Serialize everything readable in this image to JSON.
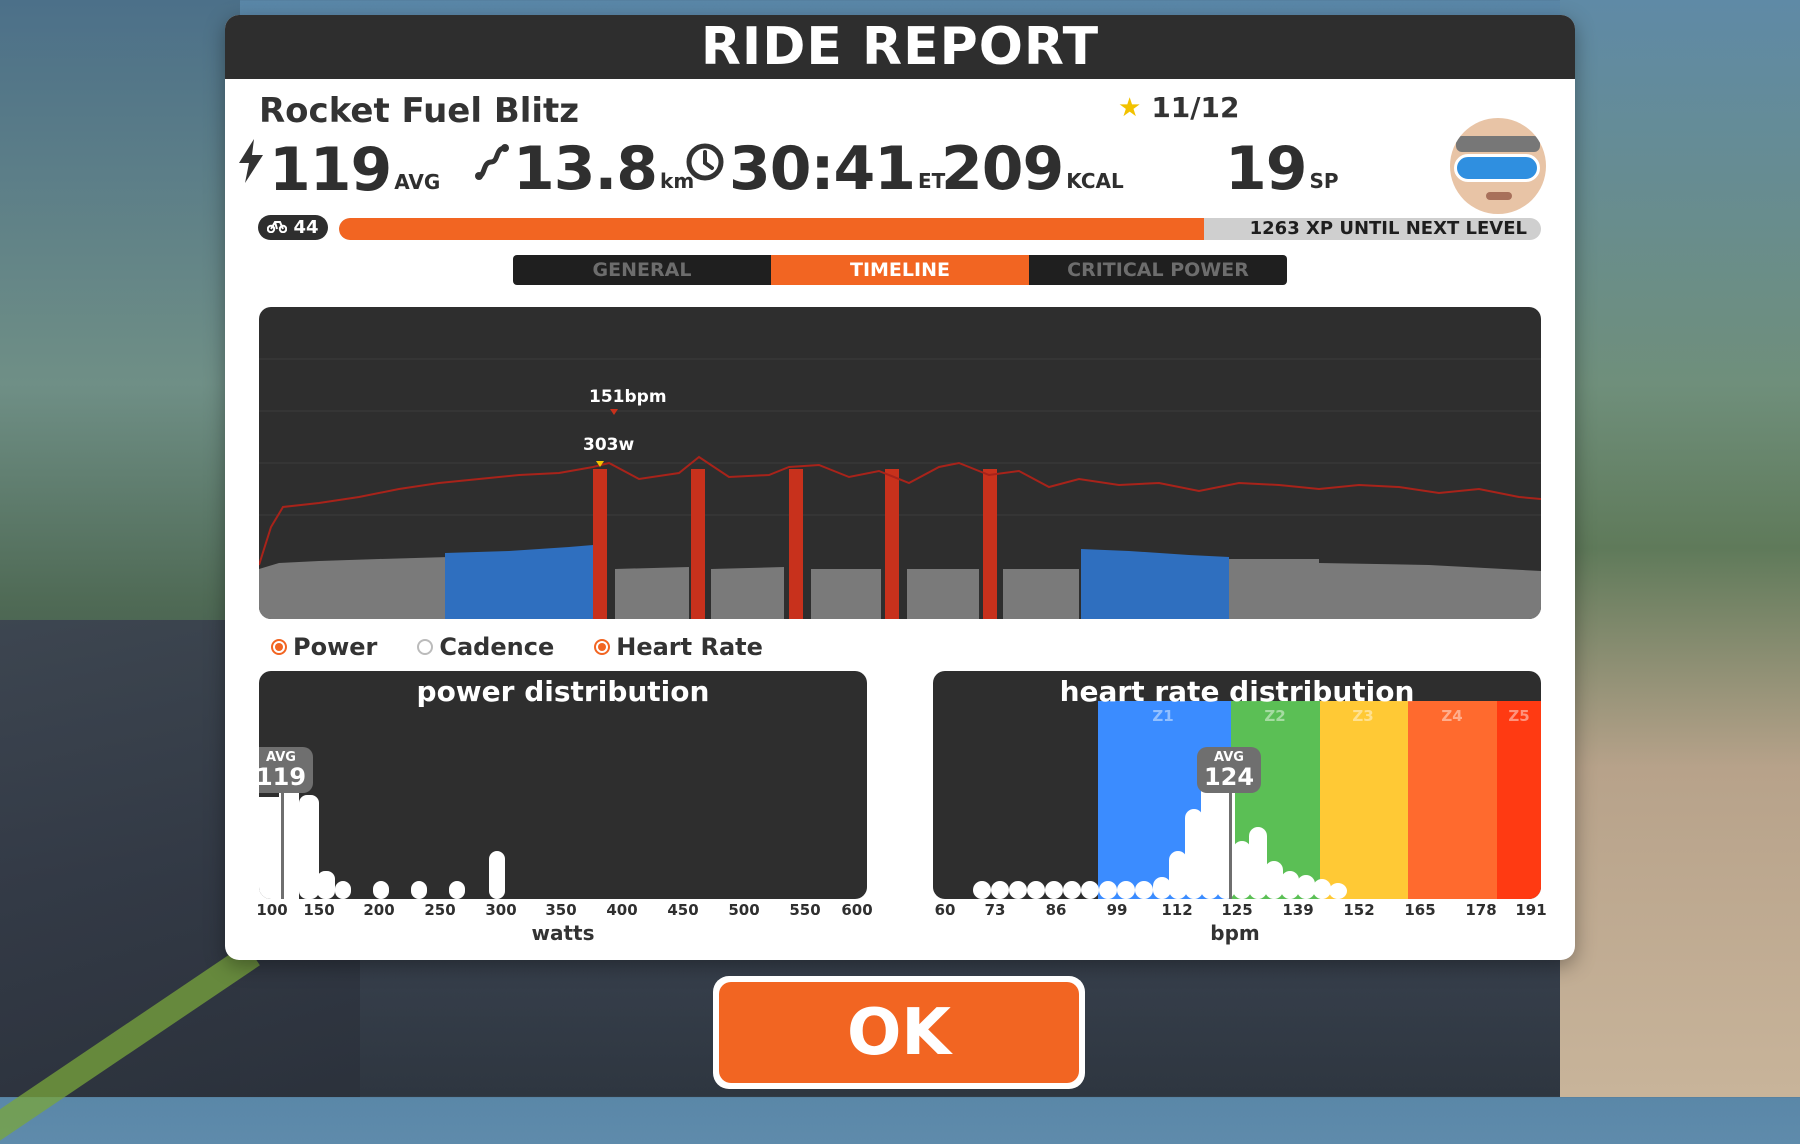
{
  "header": {
    "title": "RIDE REPORT"
  },
  "workout": {
    "name": "Rocket Fuel Blitz",
    "stars": "11/12"
  },
  "stats": {
    "power": {
      "value": "119",
      "unit": "AVG"
    },
    "distance": {
      "value": "13.8",
      "unit": "km"
    },
    "time": {
      "value": "30:41",
      "unit": "ET"
    },
    "calories": {
      "value": "209",
      "unit": "KCAL"
    },
    "sport_points": {
      "value": "19",
      "unit": "SP"
    }
  },
  "level": {
    "value": "44",
    "xp_remaining": "1263",
    "xp_label": "XP UNTIL NEXT LEVEL",
    "progress": 0.72
  },
  "tabs": [
    {
      "label": "GENERAL",
      "active": false
    },
    {
      "label": "TIMELINE",
      "active": true
    },
    {
      "label": "CRITICAL POWER",
      "active": false
    }
  ],
  "timeline": {
    "hr_peak_label": "151bpm",
    "power_peak_label": "303w"
  },
  "legend": [
    {
      "label": "Power",
      "checked": true
    },
    {
      "label": "Cadence",
      "checked": false
    },
    {
      "label": "Heart Rate",
      "checked": true
    }
  ],
  "power_distribution": {
    "title": "power distribution",
    "avg_label": "AVG",
    "avg_value": "119",
    "x_ticks": [
      "100",
      "150",
      "200",
      "250",
      "300",
      "350",
      "400",
      "450",
      "500",
      "550",
      "600"
    ],
    "x_title": "watts"
  },
  "hr_distribution": {
    "title": "heart rate distribution",
    "avg_label": "AVG",
    "avg_value": "124",
    "zones": [
      "Z1",
      "Z2",
      "Z3",
      "Z4",
      "Z5"
    ],
    "x_ticks": [
      "60",
      "73",
      "86",
      "99",
      "112",
      "125",
      "139",
      "152",
      "165",
      "178",
      "191"
    ],
    "x_title": "bpm"
  },
  "ok_button": {
    "label": "OK"
  },
  "colors": {
    "accent": "#f26522",
    "power_gray": "#7a7a7a",
    "power_blue": "#2f6fbf",
    "interval_red": "#c8311c",
    "hr_line": "#a8231a"
  }
}
